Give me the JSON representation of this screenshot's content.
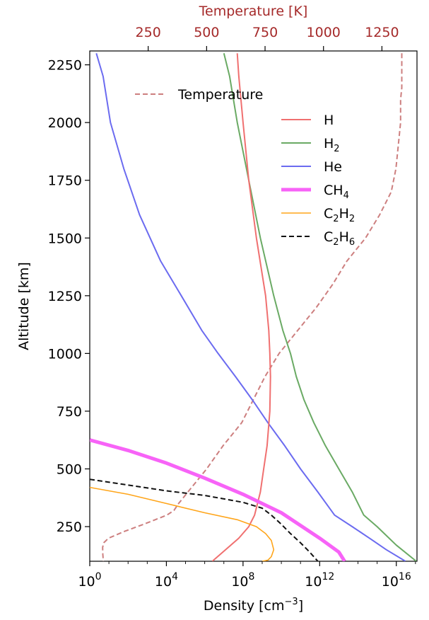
{
  "chart_data": {
    "type": "line",
    "title": "",
    "xlabel": "Density [cm⁻³]",
    "ylabel": "Altitude [km]",
    "x2label": "Temperature [K]",
    "x_scale": "log",
    "xlim": [
      1,
      1.2e+17
    ],
    "ylim": [
      100,
      2310
    ],
    "x2lim": [
      0,
      1400
    ],
    "x_ticks": [
      {
        "value": 1,
        "base": "10",
        "exp": "0"
      },
      {
        "value": 10000,
        "base": "10",
        "exp": "4"
      },
      {
        "value": 100000000,
        "base": "10",
        "exp": "8"
      },
      {
        "value": 1000000000000,
        "base": "10",
        "exp": "12"
      },
      {
        "value": 10000000000000000,
        "base": "10",
        "exp": "16"
      }
    ],
    "y_ticks": [
      250,
      500,
      750,
      1000,
      1250,
      1500,
      1750,
      2000,
      2250
    ],
    "x2_ticks": [
      250,
      500,
      750,
      1000,
      1250
    ],
    "legend_placement": "top-right",
    "temperature_legend_placement": "upper-left",
    "colors": {
      "temperature": "#cd7f7f",
      "top_axis": "#a52a2a",
      "H": "#f07070",
      "H2": "#6aaa64",
      "He": "#6b6bf0",
      "CH4": "#f763f7",
      "C2H2": "#ffa51a",
      "C2H6": "#111111"
    },
    "temperature_legend": {
      "label": "Temperature"
    },
    "legend": [
      {
        "key": "H",
        "label": "H",
        "sub": ""
      },
      {
        "key": "H2",
        "label": "H",
        "sub": "2"
      },
      {
        "key": "He",
        "label": "He",
        "sub": ""
      },
      {
        "key": "CH4",
        "label": "CH",
        "sub": "4"
      },
      {
        "key": "C2H2",
        "label": "C",
        "sub": "2",
        "label2": "H",
        "sub2": "2"
      },
      {
        "key": "C2H6",
        "label": "C",
        "sub": "2",
        "label2": "H",
        "sub2": "6"
      }
    ],
    "series": [
      {
        "key": "H",
        "name": "H",
        "axis": "density",
        "style": "solid",
        "width": 2,
        "x": [
          50000000.0,
          60000000.0,
          100000000.0,
          200000000.0,
          500000000.0,
          1500000000.0,
          2200000000.0,
          2500000000.0,
          2700000000.0,
          2500000000.0,
          1800000000.0,
          1200000000.0,
          800000000.0,
          400000000.0,
          200000000.0,
          60000000.0,
          2500000.0
        ],
        "y": [
          2300,
          2200,
          2000,
          1750,
          1500,
          1250,
          1100,
          1000,
          900,
          750,
          600,
          500,
          400,
          300,
          250,
          200,
          100
        ]
      },
      {
        "key": "H2",
        "name": "H₂",
        "axis": "density",
        "style": "solid",
        "width": 2,
        "x": [
          10000000.0,
          20000000.0,
          50000000.0,
          200000000.0,
          800000000.0,
          4000000000.0,
          12000000000.0,
          30000000000.0,
          60000000000.0,
          150000000000.0,
          500000000000.0,
          2000000000000.0,
          10000000000000.0,
          50000000000000.0,
          200000000000000.0,
          1000000000000000.0,
          1e+16,
          1.1e+17
        ],
        "y": [
          2300,
          2200,
          2000,
          1750,
          1500,
          1250,
          1100,
          1000,
          900,
          800,
          700,
          600,
          500,
          400,
          300,
          250,
          170,
          100
        ]
      },
      {
        "key": "He",
        "name": "He",
        "axis": "density",
        "style": "solid",
        "width": 2,
        "x": [
          2.2,
          5,
          12,
          60,
          400,
          5000,
          60000,
          700000,
          5000000.0,
          40000000.0,
          300000000.0,
          2000000000.0,
          15000000000.0,
          100000000000.0,
          800000000000.0,
          6000000000000.0,
          50000000000000.0,
          400000000000000.0,
          3000000000000000.0,
          3e+16
        ],
        "y": [
          2300,
          2200,
          2000,
          1800,
          1600,
          1400,
          1250,
          1100,
          1000,
          900,
          800,
          700,
          600,
          500,
          400,
          300,
          250,
          200,
          150,
          100
        ]
      },
      {
        "key": "CH4",
        "name": "CH₄",
        "axis": "density",
        "style": "solid",
        "width": 5,
        "x": [
          1,
          100,
          10000.0,
          1000000.0,
          100000000.0,
          10000000000.0,
          1000000000000.0,
          10000000000000.0,
          20000000000000.0
        ],
        "y": [
          625,
          580,
          525,
          460,
          390,
          310,
          200,
          140,
          100
        ]
      },
      {
        "key": "C2H2",
        "name": "C₂H₂",
        "axis": "density",
        "style": "solid",
        "width": 1.6,
        "x": [
          1,
          100,
          10000.0,
          1000000.0,
          50000000.0,
          500000000.0,
          1500000000.0,
          3000000000.0,
          4000000000.0,
          3000000000.0,
          2000000000.0,
          1000000000.0
        ],
        "y": [
          420,
          390,
          350,
          310,
          280,
          250,
          220,
          190,
          150,
          120,
          105,
          100
        ]
      },
      {
        "key": "C2H6",
        "name": "C₂H₆",
        "axis": "density",
        "style": "dashed",
        "width": 2,
        "x": [
          1,
          100,
          10000.0,
          1000000.0,
          100000000.0,
          1000000000.0,
          3000000000.0,
          10000000000.0,
          30000000000.0,
          100000000000.0,
          300000000000.0,
          800000000000.0
        ],
        "y": [
          455,
          430,
          405,
          385,
          355,
          330,
          300,
          260,
          220,
          180,
          140,
          100
        ]
      },
      {
        "key": "temperature",
        "name": "Temperature",
        "axis": "temperature",
        "style": "dashed",
        "width": 2,
        "x": [
          1335,
          1335,
          1330,
          1330,
          1320,
          1310,
          1290,
          1240,
          1180,
          1100,
          1040,
          970,
          890,
          810,
          750,
          700,
          650,
          570,
          500,
          420,
          380,
          360,
          330,
          280,
          230,
          150,
          80,
          60,
          55,
          56,
          58
        ],
        "y": [
          2300,
          2150,
          2100,
          2000,
          1900,
          1800,
          1700,
          1600,
          1500,
          1400,
          1300,
          1200,
          1100,
          1000,
          900,
          800,
          700,
          600,
          500,
          400,
          350,
          320,
          300,
          280,
          260,
          230,
          200,
          180,
          160,
          130,
          100
        ]
      }
    ]
  }
}
